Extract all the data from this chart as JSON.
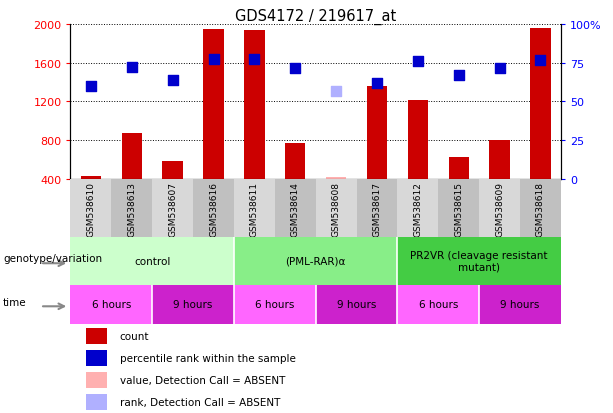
{
  "title": "GDS4172 / 219617_at",
  "samples": [
    "GSM538610",
    "GSM538613",
    "GSM538607",
    "GSM538616",
    "GSM538611",
    "GSM538614",
    "GSM538608",
    "GSM538617",
    "GSM538612",
    "GSM538615",
    "GSM538609",
    "GSM538618"
  ],
  "count_values": [
    430,
    870,
    590,
    1950,
    1940,
    775,
    null,
    1360,
    1220,
    630,
    800,
    1960
  ],
  "count_absent": [
    null,
    null,
    null,
    null,
    null,
    null,
    420,
    null,
    null,
    null,
    null,
    null
  ],
  "rank_values": [
    1360,
    1560,
    1420,
    1640,
    1640,
    1550,
    null,
    1390,
    1620,
    1470,
    1540,
    1630
  ],
  "rank_absent": [
    null,
    null,
    null,
    null,
    null,
    null,
    1310,
    null,
    null,
    null,
    null,
    null
  ],
  "ylim_left": [
    400,
    2000
  ],
  "ylim_right": [
    0,
    100
  ],
  "yticks_left": [
    400,
    800,
    1200,
    1600,
    2000
  ],
  "yticks_right": [
    0,
    25,
    50,
    75,
    100
  ],
  "ytick_labels_right": [
    "0",
    "25",
    "50",
    "75",
    "100%"
  ],
  "bar_color": "#cc0000",
  "bar_absent_color": "#ffb0b0",
  "rank_color": "#0000cc",
  "rank_absent_color": "#b0b0ff",
  "bg_color": "#ffffff",
  "plot_bg_color": "#ffffff",
  "genotype_groups": [
    {
      "label": "control",
      "start": 0,
      "end": 4,
      "color": "#ccffcc"
    },
    {
      "label": "(PML-RAR)α",
      "start": 4,
      "end": 8,
      "color": "#88ee88"
    },
    {
      "label": "PR2VR (cleavage resistant\nmutant)",
      "start": 8,
      "end": 12,
      "color": "#44cc44"
    }
  ],
  "time_groups": [
    {
      "label": "6 hours",
      "start": 0,
      "end": 2,
      "color": "#ff66ff"
    },
    {
      "label": "9 hours",
      "start": 2,
      "end": 4,
      "color": "#cc22cc"
    },
    {
      "label": "6 hours",
      "start": 4,
      "end": 6,
      "color": "#ff66ff"
    },
    {
      "label": "9 hours",
      "start": 6,
      "end": 8,
      "color": "#cc22cc"
    },
    {
      "label": "6 hours",
      "start": 8,
      "end": 10,
      "color": "#ff66ff"
    },
    {
      "label": "9 hours",
      "start": 10,
      "end": 12,
      "color": "#cc22cc"
    }
  ],
  "legend_items": [
    {
      "label": "count",
      "color": "#cc0000"
    },
    {
      "label": "percentile rank within the sample",
      "color": "#0000cc"
    },
    {
      "label": "value, Detection Call = ABSENT",
      "color": "#ffb0b0"
    },
    {
      "label": "rank, Detection Call = ABSENT",
      "color": "#b0b0ff"
    }
  ],
  "label_genotype": "genotype/variation",
  "label_time": "time",
  "bar_width": 0.5,
  "rank_marker_size": 55
}
